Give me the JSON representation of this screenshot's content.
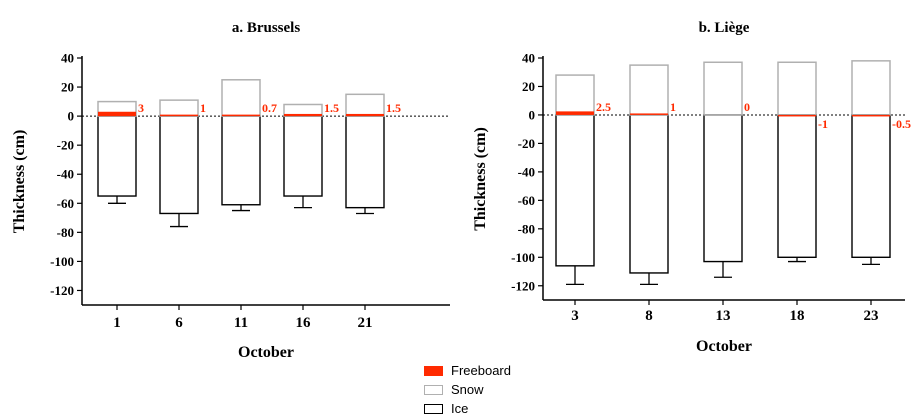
{
  "colors": {
    "freeboard": "#ff2a00",
    "snow": "#b0b0b0",
    "ice": "#000000"
  },
  "legend": [
    {
      "key": "freeboard",
      "label": "Freeboard"
    },
    {
      "key": "snow",
      "label": "Snow"
    },
    {
      "key": "ice",
      "label": "Ice"
    }
  ],
  "chart_data": [
    {
      "type": "bar",
      "title": "a. Brussels",
      "xlabel": "October",
      "ylabel": "Thickness (cm)",
      "ylim": [
        -130,
        40
      ],
      "yticks": [
        40,
        20,
        0,
        -20,
        -40,
        -60,
        -80,
        -100,
        -120
      ],
      "categories": [
        "1",
        "6",
        "11",
        "16",
        "21"
      ],
      "series": [
        {
          "name": "Freeboard",
          "values": [
            3,
            1,
            0.7,
            1.5,
            1.5
          ]
        },
        {
          "name": "Snow",
          "values": [
            10,
            11,
            25,
            8,
            15
          ]
        },
        {
          "name": "Ice",
          "values": [
            -55,
            -67,
            -61,
            -55,
            -63
          ]
        }
      ],
      "ice_error": [
        5,
        9,
        4,
        8,
        4
      ],
      "freeboard_labels": [
        "3",
        "1",
        "0.7",
        "1.5",
        "1.5"
      ],
      "legend_position": "bottom-center"
    },
    {
      "type": "bar",
      "title": "b. Liège",
      "xlabel": "October",
      "ylabel": "Thickness (cm)",
      "ylim": [
        -130,
        40
      ],
      "yticks": [
        40,
        20,
        0,
        -20,
        -40,
        -60,
        -80,
        -100,
        -120
      ],
      "categories": [
        "3",
        "8",
        "13",
        "18",
        "23"
      ],
      "series": [
        {
          "name": "Freeboard",
          "values": [
            2.5,
            1,
            0,
            -1,
            -0.5
          ]
        },
        {
          "name": "Snow",
          "values": [
            28,
            35,
            37,
            37,
            38
          ]
        },
        {
          "name": "Ice",
          "values": [
            -106,
            -111,
            -103,
            -100,
            -100
          ]
        }
      ],
      "ice_error": [
        13,
        8,
        11,
        3,
        5
      ],
      "freeboard_labels": [
        "2.5",
        "1",
        "0",
        "-1",
        "-0.5"
      ],
      "legend_position": "bottom-center"
    }
  ]
}
